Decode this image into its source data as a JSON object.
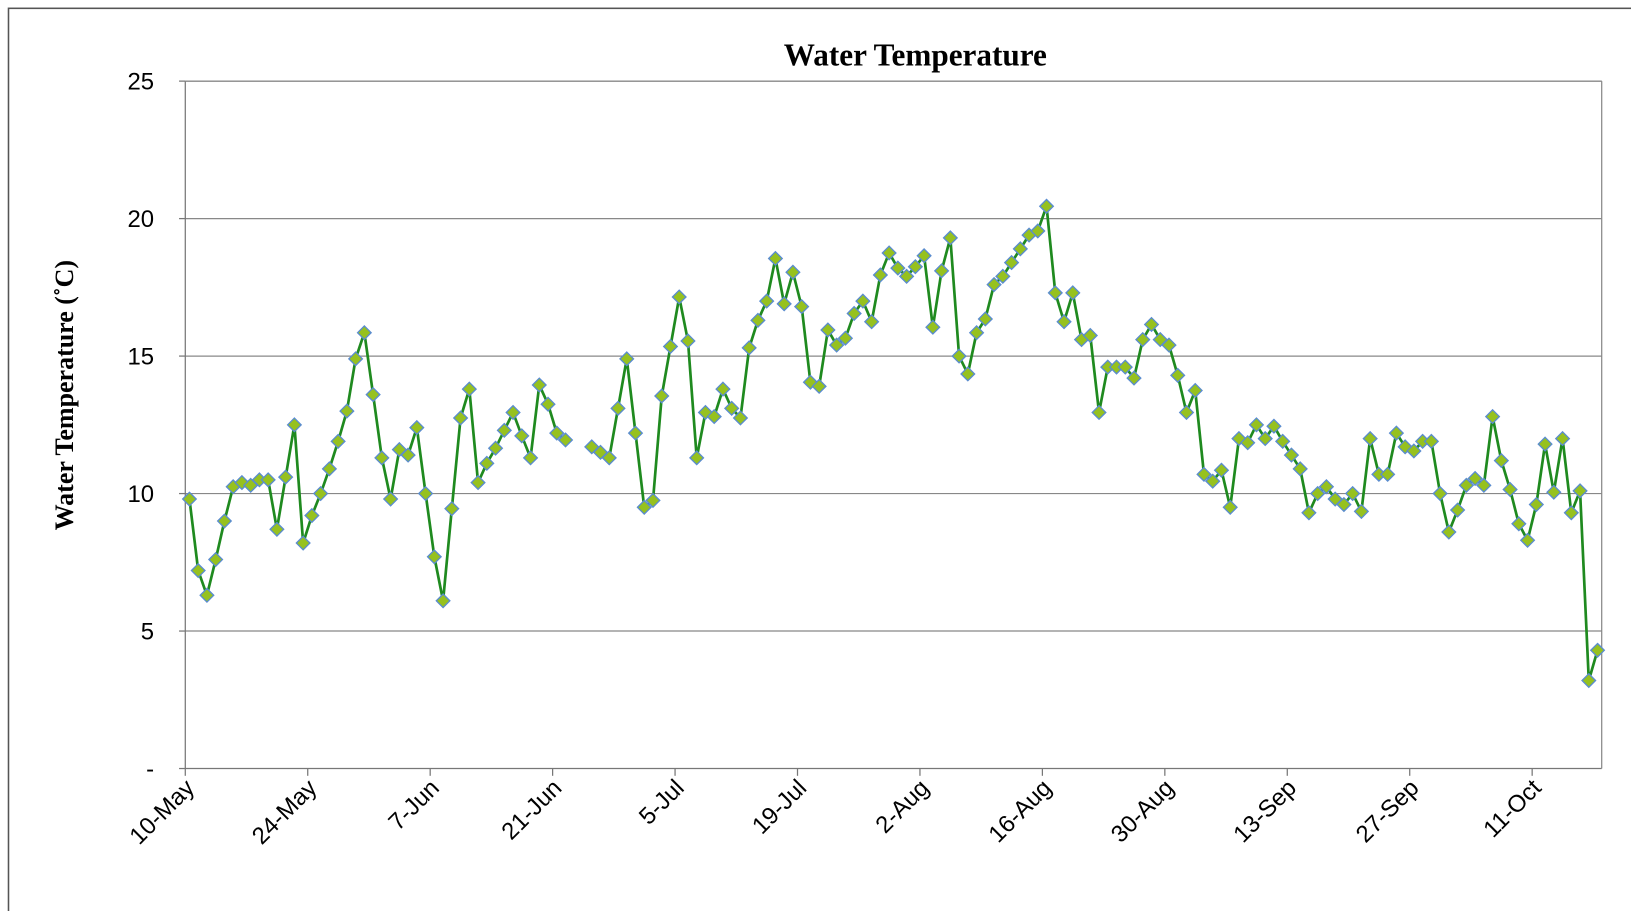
{
  "chart_data": {
    "type": "line",
    "title": "Water Temperature",
    "y_label": "Water Temperature (˚C)",
    "ylim": [
      0,
      25
    ],
    "yticks": [
      {
        "value": 0,
        "label": "-"
      },
      5,
      10,
      15,
      20,
      25
    ],
    "grid": true,
    "color": "#1f8a1f",
    "marker_color": "#96c11f",
    "marker_edge_color": "#5a8ccf",
    "categories": [
      "10-May",
      null,
      null,
      null,
      null,
      null,
      null,
      null,
      null,
      null,
      null,
      null,
      null,
      null,
      "24-May",
      null,
      null,
      null,
      null,
      null,
      null,
      null,
      null,
      null,
      null,
      null,
      null,
      null,
      "7-Jun",
      null,
      null,
      null,
      null,
      null,
      null,
      null,
      null,
      null,
      null,
      null,
      null,
      null,
      "21-Jun",
      null,
      null,
      null,
      null,
      null,
      null,
      null,
      null,
      null,
      null,
      null,
      null,
      null,
      "5-Jul",
      null,
      null,
      null,
      null,
      null,
      null,
      null,
      null,
      null,
      null,
      null,
      null,
      null,
      "19-Jul",
      null,
      null,
      null,
      null,
      null,
      null,
      null,
      null,
      null,
      null,
      null,
      null,
      null,
      "2-Aug",
      null,
      null,
      null,
      null,
      null,
      null,
      null,
      null,
      null,
      null,
      null,
      null,
      null,
      "16-Aug",
      null,
      null,
      null,
      null,
      null,
      null,
      null,
      null,
      null,
      null,
      null,
      null,
      null,
      "30-Aug",
      null,
      null,
      null,
      null,
      null,
      null,
      null,
      null,
      null,
      null,
      null,
      null,
      null,
      "13-Sep",
      null,
      null,
      null,
      null,
      null,
      null,
      null,
      null,
      null,
      null,
      null,
      null,
      null,
      "27-Sep",
      null,
      null,
      null,
      null,
      null,
      null,
      null,
      null,
      null,
      null,
      null,
      null,
      null,
      "11-Oct",
      null,
      null,
      null,
      null,
      null,
      null,
      null
    ],
    "values": [
      9.8,
      7.2,
      6.3,
      7.6,
      9.0,
      10.25,
      10.4,
      10.3,
      10.5,
      10.5,
      8.7,
      10.6,
      12.5,
      8.2,
      9.2,
      10.0,
      10.9,
      11.9,
      13.0,
      14.9,
      15.85,
      13.6,
      11.3,
      9.8,
      11.6,
      11.4,
      12.4,
      10.0,
      7.7,
      6.1,
      9.45,
      12.75,
      13.8,
      10.4,
      11.1,
      11.65,
      12.3,
      12.95,
      12.1,
      11.3,
      13.95,
      13.25,
      12.2,
      11.95,
      null,
      null,
      11.7,
      11.5,
      11.3,
      13.1,
      14.9,
      12.2,
      9.5,
      9.75,
      13.55,
      15.35,
      17.15,
      15.55,
      11.3,
      12.95,
      12.8,
      13.8,
      13.1,
      12.75,
      15.3,
      16.3,
      17.0,
      18.55,
      16.9,
      18.05,
      16.8,
      14.05,
      13.9,
      15.95,
      15.4,
      15.65,
      16.55,
      17.0,
      16.25,
      17.95,
      18.75,
      18.2,
      17.9,
      18.25,
      18.65,
      16.05,
      18.1,
      19.3,
      15.0,
      14.35,
      15.85,
      16.35,
      17.6,
      17.9,
      18.4,
      18.9,
      19.4,
      19.55,
      20.45,
      17.3,
      16.25,
      17.3,
      15.6,
      15.75,
      12.95,
      14.6,
      14.6,
      14.6,
      14.2,
      15.6,
      16.15,
      15.6,
      15.4,
      14.3,
      12.95,
      13.75,
      10.7,
      10.45,
      10.85,
      9.5,
      12.0,
      11.85,
      12.5,
      12.0,
      12.45,
      11.9,
      11.4,
      10.9,
      9.3,
      10.0,
      10.25,
      9.8,
      9.6,
      10.0,
      9.35,
      12.0,
      10.7,
      10.7,
      12.2,
      11.7,
      11.55,
      11.9,
      11.9,
      10.0,
      8.6,
      9.4,
      10.3,
      10.55,
      10.3,
      12.8,
      11.2,
      10.15,
      8.9,
      8.3,
      9.6,
      11.8,
      10.05,
      12.0,
      9.3,
      10.1,
      3.2,
      4.3
    ]
  }
}
